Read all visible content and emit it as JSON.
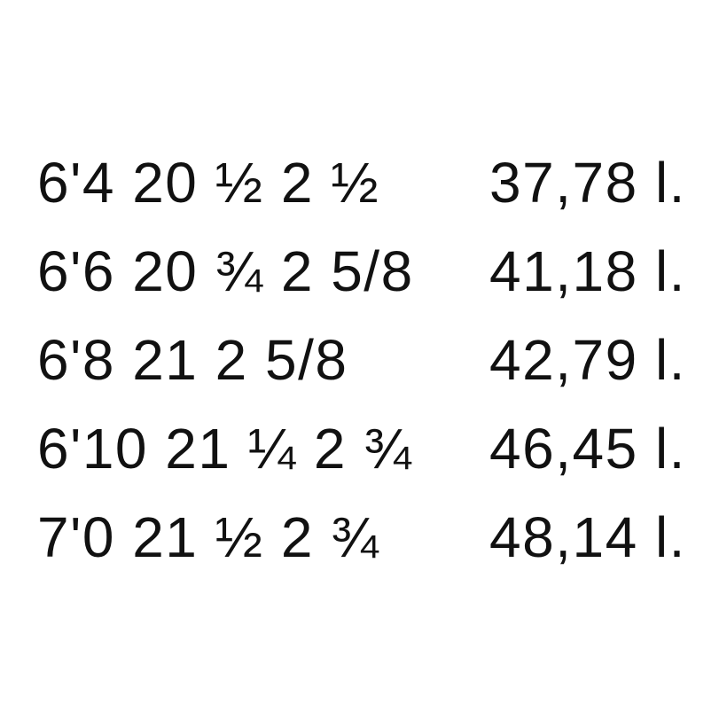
{
  "rows": [
    {
      "dimensions": "6'4 20 ½ 2 ½",
      "volume": "37,78 l."
    },
    {
      "dimensions": "6'6 20 ¾ 2 5/8",
      "volume": "41,18 l."
    },
    {
      "dimensions": "6'8 21 2 5/8",
      "volume": "42,79 l."
    },
    {
      "dimensions": "6'10 21 ¼ 2 ¾",
      "volume": "46,45 l."
    },
    {
      "dimensions": "7'0 21 ½ 2 ¾",
      "volume": "48,14 l."
    }
  ]
}
